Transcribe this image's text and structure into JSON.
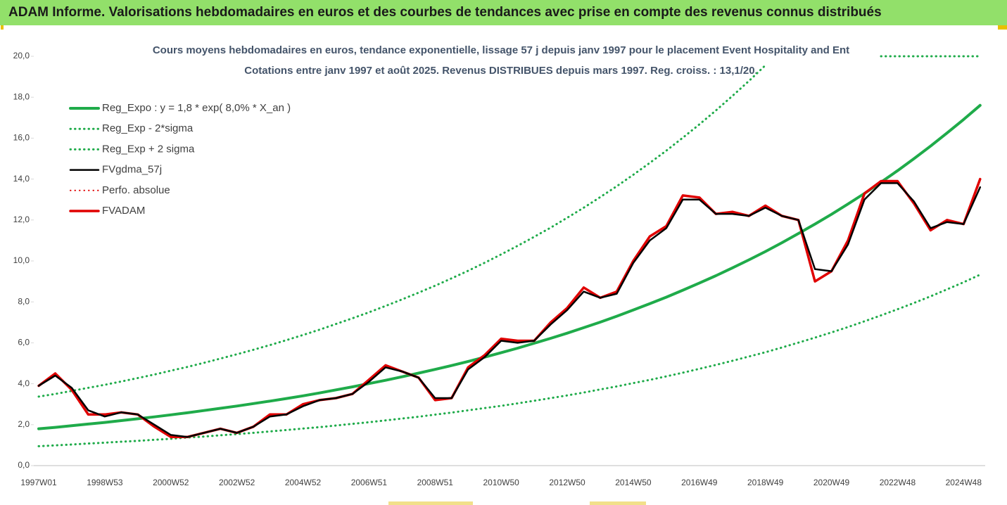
{
  "chart_data": {
    "type": "line",
    "title": "ADAM Informe. Valorisations hebdomadaires en euros et des courbes de tendances avec prise en compte des revenus connus distribués",
    "subtitle": [
      "Cours moyens hebdomadaires en euros, tendance exponentielle, lissage 57 j depuis janv 1997  pour le placement Event Hospitality and Ent",
      "Cotations entre janv 1997 et août 2025. Revenus DISTRIBUES depuis mars 1997. Reg. croiss. : 13,1/20."
    ],
    "categories": [
      "1997W01",
      null,
      null,
      null,
      "1998W53",
      null,
      null,
      null,
      "2000W52",
      null,
      null,
      null,
      "2002W52",
      null,
      null,
      null,
      "2004W52",
      null,
      null,
      null,
      "2006W51",
      null,
      null,
      null,
      "2008W51",
      null,
      null,
      null,
      "2010W50",
      null,
      null,
      null,
      "2012W50",
      null,
      null,
      null,
      "2014W50",
      null,
      null,
      null,
      "2016W49",
      null,
      null,
      null,
      "2018W49",
      null,
      null,
      null,
      "2020W49",
      null,
      null,
      null,
      "2022W48",
      null,
      null,
      null,
      "2024W48",
      null
    ],
    "ylim": [
      0,
      20
    ],
    "yticks": [
      {
        "value": 0,
        "label": "0,0"
      },
      {
        "value": 2,
        "label": "2,0"
      },
      {
        "value": 4,
        "label": "4,0"
      },
      {
        "value": 6,
        "label": "6,0"
      },
      {
        "value": 8,
        "label": "8,0"
      },
      {
        "value": 10,
        "label": "10,0"
      },
      {
        "value": 12,
        "label": "12,0"
      },
      {
        "value": 14,
        "label": "14,0"
      },
      {
        "value": 16,
        "label": "16,0"
      },
      {
        "value": 18,
        "label": "18,0"
      },
      {
        "value": 20,
        "label": "20,0"
      }
    ],
    "grid": false,
    "legend": "upper left",
    "series": [
      {
        "name": "Reg_Expo : y = 1,8 * exp( 8,0% *  X_an )",
        "color": "#1fab4a",
        "style": "solid",
        "width": 4,
        "values": [
          1.8,
          1.87,
          1.95,
          2.03,
          2.11,
          2.2,
          2.29,
          2.38,
          2.48,
          2.58,
          2.69,
          2.8,
          2.91,
          3.03,
          3.15,
          3.28,
          3.41,
          3.55,
          3.7,
          3.85,
          4.01,
          4.17,
          4.34,
          4.52,
          4.7,
          4.89,
          5.09,
          5.3,
          5.52,
          5.74,
          5.98,
          6.22,
          6.47,
          6.74,
          7.01,
          7.3,
          7.6,
          7.91,
          8.23,
          8.57,
          8.92,
          9.28,
          9.66,
          10.05,
          10.46,
          10.89,
          11.34,
          11.8,
          12.28,
          12.78,
          13.3,
          13.85,
          14.41,
          15.0,
          15.61,
          16.25,
          16.91,
          17.6
        ]
      },
      {
        "name": "Reg_Exp - 2*sigma",
        "color": "#1fab4a",
        "style": "dotted",
        "width": 3,
        "values": [
          0.95,
          0.99,
          1.03,
          1.08,
          1.12,
          1.17,
          1.21,
          1.26,
          1.31,
          1.37,
          1.42,
          1.48,
          1.54,
          1.6,
          1.67,
          1.74,
          1.81,
          1.88,
          1.96,
          2.04,
          2.12,
          2.21,
          2.3,
          2.39,
          2.49,
          2.59,
          2.7,
          2.81,
          2.92,
          3.04,
          3.17,
          3.3,
          3.43,
          3.57,
          3.72,
          3.87,
          4.03,
          4.19,
          4.36,
          4.54,
          4.73,
          4.92,
          5.12,
          5.33,
          5.54,
          5.77,
          6.01,
          6.25,
          6.51,
          6.77,
          7.05,
          7.34,
          7.64,
          7.95,
          8.27,
          8.61,
          8.96,
          9.33
        ]
      },
      {
        "name": "Reg_Exp + 2 sigma",
        "color": "#1fab4a",
        "style": "dotted",
        "width": 3,
        "values": [
          3.37,
          3.5,
          3.65,
          3.8,
          3.95,
          4.11,
          4.28,
          4.45,
          4.64,
          4.82,
          5.02,
          5.23,
          5.44,
          5.66,
          5.89,
          6.13,
          6.38,
          6.64,
          6.92,
          7.2,
          7.49,
          7.8,
          8.12,
          8.45,
          8.79,
          9.15,
          9.52,
          9.91,
          10.32,
          10.74,
          11.18,
          11.63,
          12.11,
          12.6,
          13.12,
          13.65,
          14.21,
          14.79,
          15.39,
          16.02,
          16.67,
          17.35,
          18.06,
          18.79,
          19.56,
          null,
          null,
          null,
          null,
          null,
          null,
          20,
          20,
          20,
          20,
          20,
          20,
          20
        ]
      },
      {
        "name": "FVgdma_57j",
        "color": "#000000",
        "style": "solid",
        "width": 2.5,
        "values": [
          3.9,
          4.4,
          3.8,
          2.7,
          2.4,
          2.6,
          2.5,
          2.0,
          1.5,
          1.4,
          1.6,
          1.8,
          1.6,
          1.9,
          2.4,
          2.5,
          2.9,
          3.2,
          3.3,
          3.5,
          4.1,
          4.8,
          4.6,
          4.3,
          3.3,
          3.3,
          4.7,
          5.3,
          6.1,
          6.0,
          6.1,
          6.9,
          7.6,
          8.5,
          8.2,
          8.4,
          9.9,
          11.0,
          11.6,
          13.0,
          13.0,
          12.3,
          12.3,
          12.2,
          12.6,
          12.2,
          12.0,
          9.6,
          9.5,
          10.8,
          13.0,
          13.8,
          13.8,
          12.9,
          11.6,
          11.9,
          11.8,
          13.6
        ]
      },
      {
        "name": "Perfo. absolue",
        "color": "#e00000",
        "style": "dotted",
        "width": 2,
        "values": [
          3.9,
          4.5,
          3.7,
          2.5,
          2.5,
          2.6,
          2.5,
          1.9,
          1.4,
          1.4,
          1.6,
          1.8,
          1.6,
          1.9,
          2.5,
          2.5,
          3.0,
          3.2,
          3.3,
          3.5,
          4.2,
          4.9,
          4.6,
          4.3,
          3.2,
          3.3,
          4.8,
          5.4,
          6.2,
          6.1,
          6.1,
          7.0,
          7.7,
          8.7,
          8.2,
          8.5,
          10.0,
          11.2,
          11.7,
          13.2,
          13.1,
          12.3,
          12.4,
          12.2,
          12.7,
          12.2,
          12.0,
          9.0,
          9.5,
          11.0,
          13.3,
          13.9,
          13.9,
          12.8,
          11.5,
          12.0,
          11.8,
          14.0
        ]
      },
      {
        "name": "FVADAM",
        "color": "#e00000",
        "style": "solid",
        "width": 3.5,
        "values": [
          3.9,
          4.5,
          3.7,
          2.5,
          2.5,
          2.6,
          2.5,
          1.9,
          1.4,
          1.4,
          1.6,
          1.8,
          1.6,
          1.9,
          2.5,
          2.5,
          3.0,
          3.2,
          3.3,
          3.5,
          4.2,
          4.9,
          4.6,
          4.3,
          3.2,
          3.3,
          4.8,
          5.4,
          6.2,
          6.1,
          6.1,
          7.0,
          7.7,
          8.7,
          8.2,
          8.5,
          10.0,
          11.2,
          11.7,
          13.2,
          13.1,
          12.3,
          12.4,
          12.2,
          12.7,
          12.2,
          12.0,
          9.0,
          9.5,
          11.0,
          13.3,
          13.9,
          13.9,
          12.8,
          11.5,
          12.0,
          11.8,
          14.0
        ]
      }
    ]
  }
}
